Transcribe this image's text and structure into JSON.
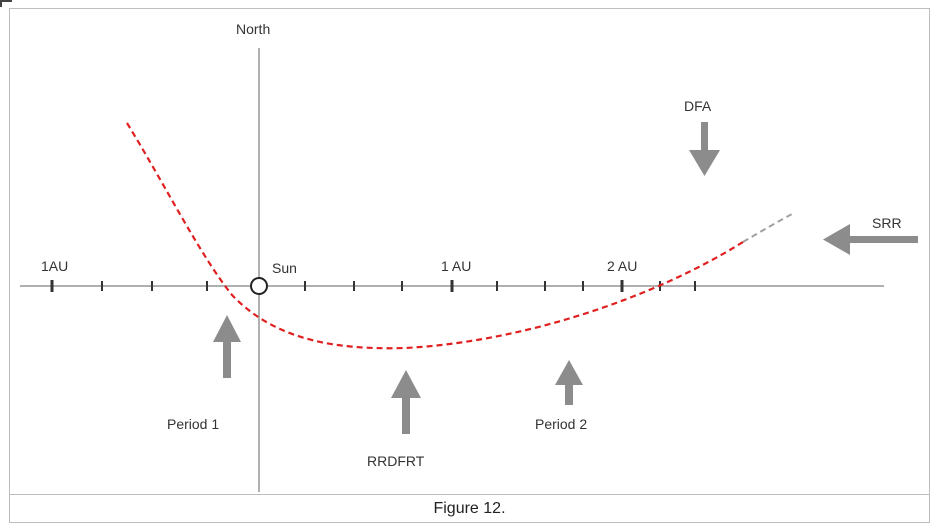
{
  "diagram": {
    "labels": {
      "north": "North",
      "sun": "Sun",
      "au_left": "1AU",
      "au_1": "1 AU",
      "au_2": "2 AU",
      "dfa": "DFA",
      "srr": "SRR",
      "period1": "Period 1",
      "rrdfrt": "RRDFRT",
      "period2": "Period 2"
    },
    "colors": {
      "axis": "#b0b0b0",
      "tick": "#333333",
      "trajectory": "#e02020",
      "trajectory_faded": "#a0a0a0",
      "arrow": "#8c8c8c"
    }
  },
  "caption": "Figure 12."
}
